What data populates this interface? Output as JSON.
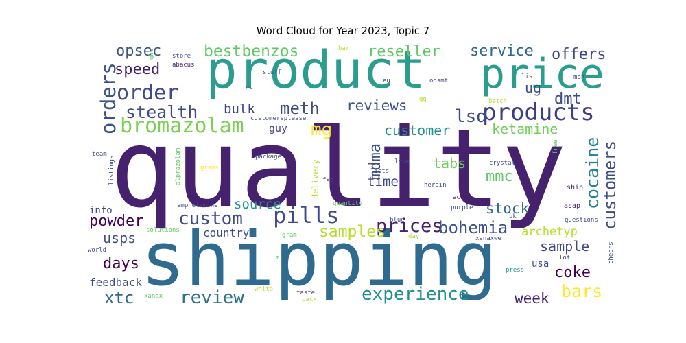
{
  "chart_data": {
    "type": "wordcloud",
    "title": "Word Cloud for Year 2023, Topic 7",
    "words": [
      {
        "text": "quality",
        "weight": 100,
        "color": "#46216e"
      },
      {
        "text": "shipping",
        "weight": 80,
        "color": "#2f6b8e"
      },
      {
        "text": "product",
        "weight": 60,
        "color": "#2a9d8f"
      },
      {
        "text": "price",
        "weight": 44,
        "color": "#2a9d8f"
      },
      {
        "text": "products",
        "weight": 30,
        "color": "#3b3f8a"
      },
      {
        "text": "pills",
        "weight": 28,
        "color": "#3e4a89"
      },
      {
        "text": "order",
        "weight": 26,
        "color": "#3e4a89"
      },
      {
        "text": "bromazolam",
        "weight": 24,
        "color": "#7ad151"
      },
      {
        "text": "orders",
        "weight": 22,
        "color": "#3b528b"
      },
      {
        "text": "custom",
        "weight": 22,
        "color": "#3e4a89"
      },
      {
        "text": "prices",
        "weight": 22,
        "color": "#46216e"
      },
      {
        "text": "review",
        "weight": 22,
        "color": "#2c728e"
      },
      {
        "text": "experience",
        "weight": 22,
        "color": "#21918c"
      },
      {
        "text": "bohemia",
        "weight": 20,
        "color": "#3b528b"
      },
      {
        "text": "stealth",
        "weight": 20,
        "color": "#3e4a89"
      },
      {
        "text": "bestbenzos",
        "weight": 20,
        "color": "#5ec962"
      },
      {
        "text": "customers",
        "weight": 19,
        "color": "#3e4a89"
      },
      {
        "text": "cocaine",
        "weight": 19,
        "color": "#26828e"
      },
      {
        "text": "mg",
        "weight": 19,
        "color": "#fde725"
      },
      {
        "text": "lsd",
        "weight": 19,
        "color": "#3e4a89"
      },
      {
        "text": "samples",
        "weight": 19,
        "color": "#b5de2b"
      },
      {
        "text": "meth",
        "weight": 18,
        "color": "#3e4a89"
      },
      {
        "text": "bars",
        "weight": 18,
        "color": "#fde725"
      },
      {
        "text": "xtc",
        "weight": 18,
        "color": "#31688e"
      },
      {
        "text": "service",
        "weight": 17,
        "color": "#31688e"
      },
      {
        "text": "offers",
        "weight": 17,
        "color": "#3e4a89"
      },
      {
        "text": "reseller",
        "weight": 17,
        "color": "#5ec962"
      },
      {
        "text": "opsec",
        "weight": 17,
        "color": "#3b528b"
      },
      {
        "text": "speed",
        "weight": 17,
        "color": "#46216e"
      },
      {
        "text": "mdma",
        "weight": 17,
        "color": "#3b528b"
      },
      {
        "text": "reviews",
        "weight": 16,
        "color": "#3b528b"
      },
      {
        "text": "customer",
        "weight": 16,
        "color": "#21918c"
      },
      {
        "text": "ketamine",
        "weight": 16,
        "color": "#6ece58"
      },
      {
        "text": "dmt",
        "weight": 16,
        "color": "#3e4a89"
      },
      {
        "text": "mmc",
        "weight": 16,
        "color": "#5ec962"
      },
      {
        "text": "coke",
        "weight": 16,
        "color": "#440154"
      },
      {
        "text": "powder",
        "weight": 16,
        "color": "#440154"
      },
      {
        "text": "days",
        "weight": 16,
        "color": "#440154"
      },
      {
        "text": "week",
        "weight": 16,
        "color": "#46216e"
      },
      {
        "text": "sample",
        "weight": 16,
        "color": "#3e4a89"
      },
      {
        "text": "stock",
        "weight": 16,
        "color": "#31688e"
      },
      {
        "text": "source",
        "weight": 15,
        "color": "#21918c"
      },
      {
        "text": "bulk",
        "weight": 15,
        "color": "#3e4a89"
      },
      {
        "text": "tabs",
        "weight": 15,
        "color": "#6ece58"
      },
      {
        "text": "time",
        "weight": 14,
        "color": "#3e4a89"
      },
      {
        "text": "usps",
        "weight": 14,
        "color": "#3e4a89"
      },
      {
        "text": "ug",
        "weight": 14,
        "color": "#3e4a89"
      },
      {
        "text": "archetyp",
        "weight": 13,
        "color": "#b5de2b"
      },
      {
        "text": "feedback",
        "weight": 12,
        "color": "#3e4a89"
      },
      {
        "text": "country",
        "weight": 12,
        "color": "#3e4a89"
      },
      {
        "text": "guy",
        "weight": 11,
        "color": "#3e4a89"
      },
      {
        "text": "usa",
        "weight": 11,
        "color": "#3e4a89"
      },
      {
        "text": "info",
        "weight": 11,
        "color": "#3e4a89"
      },
      {
        "text": "delivery",
        "weight": 9,
        "color": "#b5de2b"
      },
      {
        "text": "alprazolam",
        "weight": 7,
        "color": "#5ec962"
      },
      {
        "text": "listings",
        "weight": 7,
        "color": "#3e4a89"
      },
      {
        "text": "amphetamine",
        "weight": 7,
        "color": "#3e4a89"
      },
      {
        "text": "customersplease",
        "weight": 7,
        "color": "#3e4a89"
      },
      {
        "text": "package",
        "weight": 7,
        "color": "#3e4a89"
      },
      {
        "text": "grams",
        "weight": 7,
        "color": "#fde725"
      },
      {
        "text": "fxe",
        "weight": 7,
        "color": "#3e4a89"
      },
      {
        "text": "heroin",
        "weight": 7,
        "color": "#3e4a89"
      },
      {
        "text": "crystal",
        "weight": 7,
        "color": "#3e4a89"
      },
      {
        "text": "love",
        "weight": 7,
        "color": "#3e4a89"
      },
      {
        "text": "lists",
        "weight": 7,
        "color": "#3e4a89"
      },
      {
        "text": "free",
        "weight": 7,
        "color": "#5ec962"
      },
      {
        "text": "ship",
        "weight": 7,
        "color": "#46216e"
      },
      {
        "text": "asap",
        "weight": 7,
        "color": "#46216e"
      },
      {
        "text": "questions",
        "weight": 7,
        "color": "#3e4a89"
      },
      {
        "text": "cheers",
        "weight": 7,
        "color": "#3e4a89"
      },
      {
        "text": "lot",
        "weight": 7,
        "color": "#3e4a89"
      },
      {
        "text": "press",
        "weight": 7,
        "color": "#21918c"
      },
      {
        "text": "xanaxwe",
        "weight": 7,
        "color": "#3e4a89"
      },
      {
        "text": "uk",
        "weight": 7,
        "color": "#3e4a89"
      },
      {
        "text": "aco",
        "weight": 7,
        "color": "#46216e"
      },
      {
        "text": "purple",
        "weight": 7,
        "color": "#3e4a89"
      },
      {
        "text": "quantity",
        "weight": 7,
        "color": "#5ec962"
      },
      {
        "text": "blue",
        "weight": 7,
        "color": "#3e4a89"
      },
      {
        "text": "day",
        "weight": 7,
        "color": "#b5de2b"
      },
      {
        "text": "gram",
        "weight": 7,
        "color": "#5ec962"
      },
      {
        "text": "ml",
        "weight": 7,
        "color": "#5ec962"
      },
      {
        "text": "solutions",
        "weight": 7,
        "color": "#5ec962"
      },
      {
        "text": "world",
        "weight": 7,
        "color": "#3e4a89"
      },
      {
        "text": "xanax",
        "weight": 7,
        "color": "#5ec962"
      },
      {
        "text": "white",
        "weight": 7,
        "color": "#b5de2b"
      },
      {
        "text": "taste",
        "weight": 7,
        "color": "#3e4a89"
      },
      {
        "text": "pack",
        "weight": 7,
        "color": "#b5de2b"
      },
      {
        "text": "team",
        "weight": 7,
        "color": "#3e4a89"
      },
      {
        "text": "ghb",
        "weight": 7,
        "color": "#5ec962"
      },
      {
        "text": "abacus",
        "weight": 7,
        "color": "#46216e"
      },
      {
        "text": "store",
        "weight": 7,
        "color": "#3e4a89"
      },
      {
        "text": "bar",
        "weight": 7,
        "color": "#b5de2b"
      },
      {
        "text": "stuff",
        "weight": 7,
        "color": "#3e4a89"
      },
      {
        "text": "rc",
        "weight": 7,
        "color": "#3e4a89"
      },
      {
        "text": "eu",
        "weight": 7,
        "color": "#3e4a89"
      },
      {
        "text": "odsmt",
        "weight": 7,
        "color": "#3e4a89"
      },
      {
        "text": "gg",
        "weight": 7,
        "color": "#b5de2b"
      },
      {
        "text": "list",
        "weight": 7,
        "color": "#3e4a89"
      },
      {
        "text": "mph",
        "weight": 7,
        "color": "#3e4a89"
      },
      {
        "text": "batch",
        "weight": 7,
        "color": "#b5de2b"
      }
    ]
  }
}
